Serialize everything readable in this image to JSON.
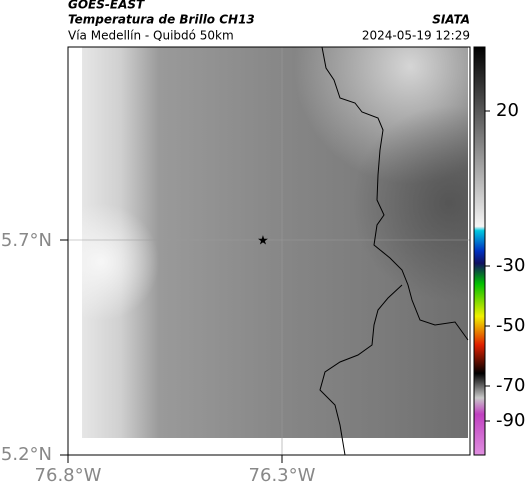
{
  "header": {
    "satellite": "GOES-EAST",
    "title": "Temperatura de Brillo CH13",
    "subtitle": "Vía Medellín - Quibdó 50km",
    "source": "SIATA",
    "datetime": "2024-05-19 12:29"
  },
  "axes": {
    "y_ticks": [
      "5.7°N",
      "5.2°N"
    ],
    "x_ticks": [
      "76.8°W",
      "76.3°W"
    ]
  },
  "colorbar": {
    "ticks": [
      "20",
      "-30",
      "-50",
      "-70",
      "-90"
    ]
  }
}
